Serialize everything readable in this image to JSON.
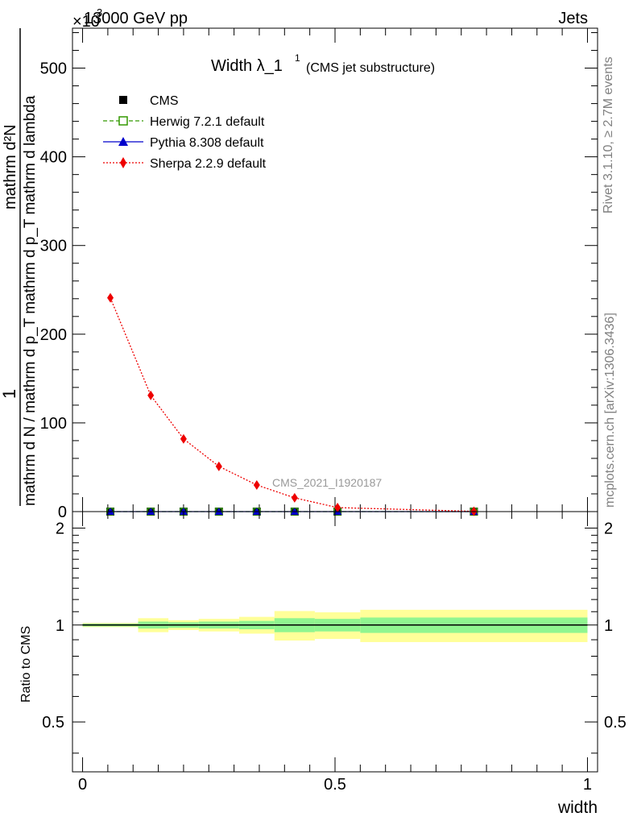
{
  "header": {
    "energy_label": "13000 GeV pp",
    "process_label": "Jets",
    "exponent_label": "×10",
    "exponent_power": "3"
  },
  "side_labels": {
    "rivet": "Rivet 3.1.10, ≥ 2.7M events",
    "mcplots": "mcplots.cern.ch [arXiv:1306.3436]"
  },
  "chart_data": [
    {
      "type": "scatter",
      "title": "Width λ_1",
      "title_superscript": "1",
      "subtitle": "(CMS jet substructure)",
      "watermark": "CMS_2021_I1920187",
      "ylabel_numerator": "1",
      "ylabel_denominator": "mathrm d N / mathrm d p_T mathrm d p_T mathrm d lambda",
      "ylabel_top": "mathrm d²N",
      "ylim": [
        0,
        545
      ],
      "yticks": [
        0,
        100,
        200,
        300,
        400,
        500
      ],
      "xlim": [
        -0.02,
        1.02
      ],
      "legend_position": "top-left",
      "series": [
        {
          "name": "CMS",
          "color": "#000000",
          "marker": "square",
          "x": [
            0.055,
            0.135,
            0.2,
            0.27,
            0.345,
            0.42,
            0.505,
            0.775
          ],
          "values": [
            0,
            0,
            0,
            0,
            0,
            0,
            0,
            0
          ]
        },
        {
          "name": "Herwig 7.2.1 default",
          "color": "#339900",
          "marker": "open-square",
          "line": "dashed",
          "x": [
            0.055,
            0.135,
            0.2,
            0.27,
            0.345,
            0.42,
            0.505,
            0.775
          ],
          "values": [
            0,
            0,
            0,
            0,
            0,
            0,
            0,
            0
          ]
        },
        {
          "name": "Pythia 8.308 default",
          "color": "#0000cc",
          "marker": "triangle",
          "line": "solid",
          "x": [
            0.055,
            0.135,
            0.2,
            0.27,
            0.345,
            0.42,
            0.505,
            0.775
          ],
          "values": [
            0,
            0,
            0,
            0,
            0,
            0,
            0,
            0
          ]
        },
        {
          "name": "Sherpa 2.2.9 default",
          "color": "#ee0000",
          "marker": "diamond",
          "line": "dotted",
          "x": [
            0.055,
            0.135,
            0.2,
            0.27,
            0.345,
            0.42,
            0.505,
            0.775
          ],
          "values": [
            241,
            131,
            82,
            51,
            30,
            15.5,
            4.5,
            0.3
          ]
        }
      ]
    },
    {
      "type": "area",
      "ylabel": "Ratio to CMS",
      "xlabel": "width",
      "ylim": [
        0.35,
        2.25
      ],
      "yticks": [
        0.5,
        1,
        2
      ],
      "ytick_labels": [
        "0.5",
        "1",
        "2"
      ],
      "xlim": [
        -0.02,
        1.02
      ],
      "xticks": [
        0,
        0.5,
        1
      ],
      "xtick_labels": [
        "0",
        "0.5",
        "1"
      ],
      "bins": [
        {
          "lo": 0.0,
          "hi": 0.11,
          "stat": 0.01,
          "total": 0.015
        },
        {
          "lo": 0.11,
          "hi": 0.17,
          "stat": 0.025,
          "total": 0.05
        },
        {
          "lo": 0.17,
          "hi": 0.23,
          "stat": 0.02,
          "total": 0.035
        },
        {
          "lo": 0.23,
          "hi": 0.31,
          "stat": 0.025,
          "total": 0.045
        },
        {
          "lo": 0.31,
          "hi": 0.38,
          "stat": 0.03,
          "total": 0.06
        },
        {
          "lo": 0.38,
          "hi": 0.46,
          "stat": 0.05,
          "total": 0.105
        },
        {
          "lo": 0.46,
          "hi": 0.55,
          "stat": 0.045,
          "total": 0.095
        },
        {
          "lo": 0.55,
          "hi": 1.0,
          "stat": 0.055,
          "total": 0.115
        }
      ],
      "band_colors": {
        "stat": "#90f590",
        "total": "#ffff99"
      },
      "reference_value": 1
    }
  ]
}
